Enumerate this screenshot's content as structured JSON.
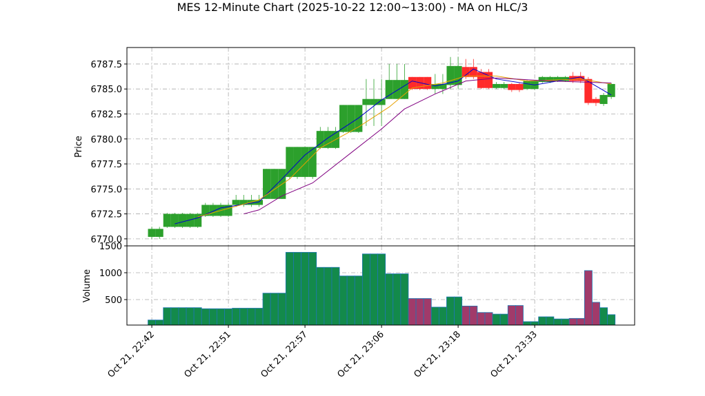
{
  "chart_data": {
    "type": "candlestick",
    "title": "MES 12-Minute Chart (2025-10-22 12:00~13:00) - MA on HLC/3",
    "ylabel": "Price",
    "volume_label": "Volume",
    "x": [
      0,
      1,
      2,
      3,
      4,
      5,
      6,
      7,
      8,
      9,
      10,
      11,
      12,
      13,
      14,
      15,
      16,
      17,
      18,
      19,
      20,
      21,
      22,
      23,
      24,
      25,
      26,
      27,
      28,
      29,
      30,
      31,
      32,
      33,
      34,
      35,
      36,
      37,
      38,
      39,
      40,
      41,
      42,
      43,
      44,
      45,
      46,
      47,
      48,
      49,
      50,
      51,
      52,
      53,
      54,
      55,
      56,
      57,
      58,
      59,
      60
    ],
    "open": [
      6770.2,
      6770.2,
      6771.2,
      6771.2,
      6771.2,
      6771.2,
      6771.2,
      6772.3,
      6772.3,
      6772.3,
      6772.3,
      6773.4,
      6773.4,
      6773.4,
      6773.4,
      6774,
      6774,
      6774,
      6776.2,
      6776.2,
      6776.2,
      6776.2,
      6779.1,
      6779.1,
      6779.1,
      6780.7,
      6780.7,
      6780.7,
      6783.4,
      6783.4,
      6783.4,
      6784,
      6784,
      6784,
      6786.2,
      6786.2,
      6786.2,
      6785,
      6785,
      6785.4,
      6785.4,
      6787.2,
      6787.2,
      6786.7,
      6786.7,
      6785.1,
      6785.1,
      6785.5,
      6785.5,
      6785,
      6785,
      6785.7,
      6785.7,
      6785.8,
      6785.8,
      6786.3,
      6786.3,
      6786,
      6784,
      6783.5,
      6784.2
    ],
    "high": [
      6771.2,
      6771.2,
      6772.6,
      6772.6,
      6772.6,
      6772.6,
      6772.6,
      6773.6,
      6773.6,
      6773.6,
      6773.6,
      6774.4,
      6774.4,
      6774.4,
      6774.4,
      6777,
      6777,
      6777,
      6779.2,
      6779.2,
      6779.2,
      6779.2,
      6781.2,
      6781.2,
      6781.2,
      6783.4,
      6783.4,
      6783.4,
      6786,
      6786,
      6786,
      6787.5,
      6787.5,
      6787.5,
      6786.2,
      6786.2,
      6786.2,
      6786.5,
      6786.5,
      6788.2,
      6788.2,
      6788,
      6788,
      6787,
      6787,
      6785.7,
      6785.7,
      6785.6,
      6785.6,
      6785.9,
      6785.9,
      6786.3,
      6786.3,
      6786.3,
      6786.3,
      6786.7,
      6786.7,
      6786.2,
      6784.2,
      6784.6,
      6785.6
    ],
    "low": [
      6770,
      6770,
      6771.1,
      6771.1,
      6771.1,
      6771.1,
      6771.1,
      6772.2,
      6772.2,
      6772.2,
      6772.2,
      6773.2,
      6773.2,
      6773.2,
      6773.2,
      6774,
      6774,
      6774,
      6776,
      6776,
      6776,
      6776,
      6779,
      6779,
      6779,
      6780.6,
      6780.6,
      6780.6,
      6781.3,
      6781.3,
      6781.3,
      6784,
      6784,
      6784,
      6784.9,
      6784.9,
      6784.9,
      6784.5,
      6784.5,
      6785,
      6785,
      6786,
      6786,
      6785,
      6785,
      6785,
      6785,
      6784.7,
      6784.7,
      6784.9,
      6784.9,
      6785.6,
      6785.6,
      6785.7,
      6785.7,
      6785.6,
      6785.6,
      6783.4,
      6783.3,
      6783.3,
      6784
    ],
    "close": [
      6771,
      6771,
      6772.5,
      6772.5,
      6772.5,
      6772.5,
      6772.5,
      6773.4,
      6773.4,
      6773.4,
      6773.4,
      6773.9,
      6773.9,
      6773.9,
      6773.9,
      6777,
      6777,
      6777,
      6779.2,
      6779.2,
      6779.2,
      6779.2,
      6780.8,
      6780.8,
      6780.8,
      6783.4,
      6783.4,
      6783.4,
      6784,
      6784,
      6784,
      6785.9,
      6785.9,
      6785.9,
      6785,
      6785,
      6785,
      6785.5,
      6785.5,
      6787.3,
      6787.3,
      6786.2,
      6786.2,
      6785.1,
      6785.1,
      6785.5,
      6785.5,
      6784.9,
      6784.9,
      6785.8,
      6785.8,
      6786.2,
      6786.2,
      6786.2,
      6786.2,
      6785.8,
      6785.8,
      6783.6,
      6783.6,
      6784.4,
      6785.5
    ],
    "volume": [
      120,
      120,
      350,
      350,
      350,
      350,
      350,
      330,
      330,
      330,
      330,
      340,
      340,
      340,
      340,
      620,
      620,
      620,
      1380,
      1380,
      1380,
      1380,
      1100,
      1100,
      1100,
      940,
      940,
      940,
      1350,
      1350,
      1350,
      980,
      980,
      980,
      520,
      520,
      520,
      360,
      360,
      550,
      550,
      380,
      380,
      260,
      260,
      230,
      230,
      390,
      390,
      90,
      90,
      180,
      180,
      140,
      140,
      150,
      150,
      1040,
      450,
      350,
      220
    ],
    "up_color": "#2ca02c",
    "down_color": "#ff2a2a",
    "volume_up_color": "#138a4b",
    "volume_down_color": "#a13a6a",
    "volume_edge_color": "#1f77b4",
    "ma_series": [
      {
        "color": "#0000cc",
        "x": [
          3,
          6,
          9,
          14,
          17,
          20,
          23,
          27,
          30,
          34,
          37,
          40,
          42,
          45,
          50,
          56,
          60
        ],
        "values": [
          6771.5,
          6772.1,
          6773.1,
          6773.7,
          6776,
          6778.4,
          6780.1,
          6782.1,
          6783.9,
          6785.8,
          6785.3,
          6785.8,
          6787,
          6786,
          6785.4,
          6786.2,
          6784.4
        ]
      },
      {
        "color": "#e6a000",
        "x": [
          6,
          14,
          18,
          22,
          27,
          31,
          34,
          38,
          41,
          45,
          49,
          56,
          60
        ],
        "values": [
          6772.2,
          6773.9,
          6776,
          6779.1,
          6781.2,
          6783.2,
          6785.1,
          6785.6,
          6786.3,
          6786.3,
          6785.8,
          6786,
          6785.5
        ]
      },
      {
        "color": "#800080",
        "x": [
          12,
          14,
          17,
          21,
          26,
          30,
          33,
          37,
          41,
          45,
          52,
          60
        ],
        "values": [
          6772.5,
          6772.9,
          6774.3,
          6775.6,
          6778.6,
          6781,
          6783,
          6784.5,
          6785.8,
          6786.1,
          6785.8,
          6785.6
        ]
      }
    ],
    "xlim": [
      -3.25,
      63.05
    ],
    "xticks": [
      {
        "value": 0,
        "label": "Oct 21, 22:42"
      },
      {
        "value": 10,
        "label": "Oct 21, 22:51"
      },
      {
        "value": 20,
        "label": "Oct 21, 22:57"
      },
      {
        "value": 30,
        "label": "Oct 21, 23:06"
      },
      {
        "value": 40,
        "label": "Oct 21, 23:18"
      },
      {
        "value": 50,
        "label": "Oct 21, 23:33"
      }
    ],
    "ylim": [
      6769.3,
      6789.15
    ],
    "yticks": [
      {
        "value": 6770,
        "label": "6770.0"
      },
      {
        "value": 6772.5,
        "label": "6772.5"
      },
      {
        "value": 6775,
        "label": "6775.0"
      },
      {
        "value": 6777.5,
        "label": "6777.5"
      },
      {
        "value": 6780,
        "label": "6780.0"
      },
      {
        "value": 6782.5,
        "label": "6782.5"
      },
      {
        "value": 6785,
        "label": "6785.0"
      },
      {
        "value": 6787.5,
        "label": "6787.5"
      }
    ],
    "volume_ylim": [
      26,
      1500
    ],
    "volume_yticks": [
      500,
      1000,
      1500
    ],
    "grid": true
  }
}
